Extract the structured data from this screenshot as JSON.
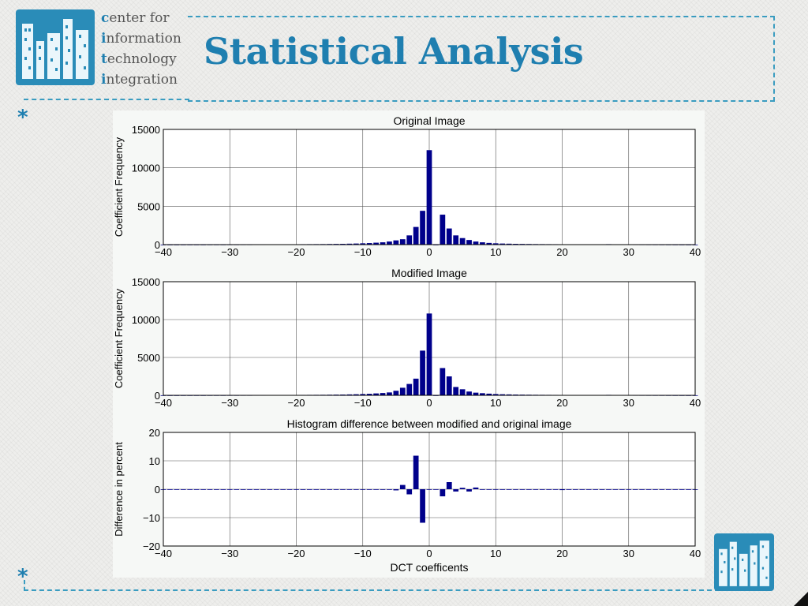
{
  "header": {
    "org_lines": [
      {
        "initial": "c",
        "rest": "enter for"
      },
      {
        "initial": "i",
        "rest": "nformation"
      },
      {
        "initial": "t",
        "rest": "echnology"
      },
      {
        "initial": "i",
        "rest": "ntegration"
      }
    ],
    "title": "Statistical Analysis"
  },
  "decor": {
    "bullet_glyph": "*",
    "accent_color": "#1f7fb0",
    "logo_icon": "city-buildings-logo"
  },
  "chart_data": [
    {
      "type": "bar",
      "title": "Original Image",
      "xlabel": "",
      "ylabel": "Coefficient Frequency",
      "xlim": [
        -40,
        40
      ],
      "ylim": [
        0,
        15000
      ],
      "xticks": [
        -40,
        -30,
        -20,
        -10,
        0,
        10,
        20,
        30,
        40
      ],
      "yticks": [
        0,
        5000,
        10000,
        15000
      ],
      "grid": true,
      "bar_color": "#00008b",
      "x": [
        -40,
        -39,
        -38,
        -37,
        -36,
        -35,
        -34,
        -33,
        -32,
        -31,
        -30,
        -29,
        -28,
        -27,
        -26,
        -25,
        -24,
        -23,
        -22,
        -21,
        -20,
        -19,
        -18,
        -17,
        -16,
        -15,
        -14,
        -13,
        -12,
        -11,
        -10,
        -9,
        -8,
        -7,
        -6,
        -5,
        -4,
        -3,
        -2,
        -1,
        0,
        1,
        2,
        3,
        4,
        5,
        6,
        7,
        8,
        9,
        10,
        11,
        12,
        13,
        14,
        15,
        16,
        17,
        18,
        19,
        20,
        21,
        22,
        23,
        24,
        25,
        26,
        27,
        28,
        29,
        30,
        31,
        32,
        33,
        34,
        35,
        36,
        37,
        38,
        39,
        40
      ],
      "values": [
        5,
        5,
        5,
        10,
        10,
        10,
        10,
        15,
        15,
        15,
        20,
        20,
        25,
        25,
        30,
        30,
        35,
        40,
        40,
        45,
        50,
        55,
        60,
        65,
        70,
        80,
        90,
        100,
        120,
        140,
        170,
        200,
        250,
        300,
        400,
        550,
        700,
        1200,
        2300,
        4400,
        12300,
        0,
        3900,
        2100,
        1200,
        850,
        600,
        400,
        300,
        220,
        170,
        140,
        120,
        100,
        90,
        80,
        70,
        65,
        60,
        55,
        50,
        48,
        45,
        40,
        38,
        35,
        40,
        60,
        45,
        35,
        30,
        28,
        25,
        22,
        20,
        18,
        15,
        12,
        10,
        8,
        5
      ]
    },
    {
      "type": "bar",
      "title": "Modified Image",
      "xlabel": "",
      "ylabel": "Coefficient Frequency",
      "xlim": [
        -40,
        40
      ],
      "ylim": [
        0,
        15000
      ],
      "xticks": [
        -40,
        -30,
        -20,
        -10,
        0,
        10,
        20,
        30,
        40
      ],
      "yticks": [
        0,
        5000,
        10000,
        15000
      ],
      "grid": true,
      "bar_color": "#00008b",
      "x": [
        -40,
        -39,
        -38,
        -37,
        -36,
        -35,
        -34,
        -33,
        -32,
        -31,
        -30,
        -29,
        -28,
        -27,
        -26,
        -25,
        -24,
        -23,
        -22,
        -21,
        -20,
        -19,
        -18,
        -17,
        -16,
        -15,
        -14,
        -13,
        -12,
        -11,
        -10,
        -9,
        -8,
        -7,
        -6,
        -5,
        -4,
        -3,
        -2,
        -1,
        0,
        1,
        2,
        3,
        4,
        5,
        6,
        7,
        8,
        9,
        10,
        11,
        12,
        13,
        14,
        15,
        16,
        17,
        18,
        19,
        20,
        21,
        22,
        23,
        24,
        25,
        26,
        27,
        28,
        29,
        30,
        31,
        32,
        33,
        34,
        35,
        36,
        37,
        38,
        39,
        40
      ],
      "values": [
        5,
        5,
        5,
        10,
        10,
        10,
        10,
        15,
        15,
        15,
        20,
        20,
        25,
        25,
        30,
        30,
        35,
        40,
        40,
        45,
        50,
        55,
        60,
        65,
        70,
        80,
        90,
        100,
        120,
        140,
        170,
        200,
        250,
        300,
        380,
        600,
        1000,
        1500,
        2200,
        5900,
        10800,
        0,
        3600,
        2500,
        1100,
        800,
        500,
        350,
        280,
        220,
        170,
        140,
        120,
        100,
        90,
        80,
        70,
        65,
        60,
        55,
        50,
        48,
        45,
        40,
        38,
        35,
        40,
        60,
        45,
        35,
        30,
        28,
        25,
        22,
        20,
        18,
        15,
        12,
        10,
        8,
        5
      ]
    },
    {
      "type": "bar",
      "title": "Histogram difference between modified and original image",
      "xlabel": "DCT coefficents",
      "ylabel": "Difference in percent",
      "xlim": [
        -40,
        40
      ],
      "ylim": [
        -20,
        20
      ],
      "xticks": [
        -40,
        -30,
        -20,
        -10,
        0,
        10,
        20,
        30,
        40
      ],
      "yticks": [
        -20,
        -10,
        0,
        10,
        20
      ],
      "grid": true,
      "bar_color": "#00008b",
      "x": [
        -40,
        -39,
        -38,
        -37,
        -36,
        -35,
        -34,
        -33,
        -32,
        -31,
        -30,
        -29,
        -28,
        -27,
        -26,
        -25,
        -24,
        -23,
        -22,
        -21,
        -20,
        -19,
        -18,
        -17,
        -16,
        -15,
        -14,
        -13,
        -12,
        -11,
        -10,
        -9,
        -8,
        -7,
        -6,
        -5,
        -4,
        -3,
        -2,
        -1,
        0,
        1,
        2,
        3,
        4,
        5,
        6,
        7,
        8,
        9,
        10,
        11,
        12,
        13,
        14,
        15,
        16,
        17,
        18,
        19,
        20,
        21,
        22,
        23,
        24,
        25,
        26,
        27,
        28,
        29,
        30,
        31,
        32,
        33,
        34,
        35,
        36,
        37,
        38,
        39,
        40
      ],
      "values": [
        0,
        0,
        0,
        0,
        0,
        0,
        0,
        0,
        0,
        0,
        0,
        0,
        0,
        0,
        0,
        0,
        0,
        0,
        0,
        0,
        0,
        0,
        0,
        0,
        0,
        -0.2,
        -0.2,
        -0.1,
        0,
        0,
        0,
        0,
        0,
        0,
        -0.2,
        -0.4,
        1.5,
        -1.8,
        11.8,
        -11.8,
        0,
        0,
        -2.5,
        2.5,
        -0.8,
        0.5,
        -0.8,
        0.6,
        0,
        0,
        0,
        0,
        0,
        0,
        0,
        0,
        0,
        0,
        0,
        0,
        -0.3,
        -0.2,
        0,
        0,
        0,
        0,
        0,
        0,
        0,
        0,
        0,
        0,
        0,
        0,
        0,
        0,
        0,
        0,
        0,
        0,
        0
      ]
    }
  ]
}
